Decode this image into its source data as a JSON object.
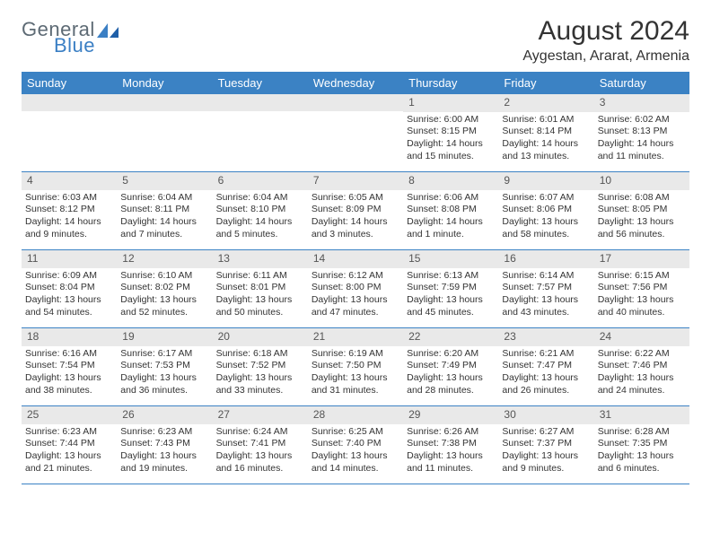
{
  "logo": {
    "word1": "General",
    "word2": "Blue",
    "color1": "#5d6a74",
    "color2": "#3b7fc4"
  },
  "title": "August 2024",
  "location": "Aygestan, Ararat, Armenia",
  "header_bg": "#3b82c4",
  "header_text_color": "#ffffff",
  "daynum_bg": "#e9e9e9",
  "weekdays": [
    "Sunday",
    "Monday",
    "Tuesday",
    "Wednesday",
    "Thursday",
    "Friday",
    "Saturday"
  ],
  "weeks": [
    [
      {
        "n": "",
        "lines": []
      },
      {
        "n": "",
        "lines": []
      },
      {
        "n": "",
        "lines": []
      },
      {
        "n": "",
        "lines": []
      },
      {
        "n": "1",
        "lines": [
          "Sunrise: 6:00 AM",
          "Sunset: 8:15 PM",
          "Daylight: 14 hours and 15 minutes."
        ]
      },
      {
        "n": "2",
        "lines": [
          "Sunrise: 6:01 AM",
          "Sunset: 8:14 PM",
          "Daylight: 14 hours and 13 minutes."
        ]
      },
      {
        "n": "3",
        "lines": [
          "Sunrise: 6:02 AM",
          "Sunset: 8:13 PM",
          "Daylight: 14 hours and 11 minutes."
        ]
      }
    ],
    [
      {
        "n": "4",
        "lines": [
          "Sunrise: 6:03 AM",
          "Sunset: 8:12 PM",
          "Daylight: 14 hours and 9 minutes."
        ]
      },
      {
        "n": "5",
        "lines": [
          "Sunrise: 6:04 AM",
          "Sunset: 8:11 PM",
          "Daylight: 14 hours and 7 minutes."
        ]
      },
      {
        "n": "6",
        "lines": [
          "Sunrise: 6:04 AM",
          "Sunset: 8:10 PM",
          "Daylight: 14 hours and 5 minutes."
        ]
      },
      {
        "n": "7",
        "lines": [
          "Sunrise: 6:05 AM",
          "Sunset: 8:09 PM",
          "Daylight: 14 hours and 3 minutes."
        ]
      },
      {
        "n": "8",
        "lines": [
          "Sunrise: 6:06 AM",
          "Sunset: 8:08 PM",
          "Daylight: 14 hours and 1 minute."
        ]
      },
      {
        "n": "9",
        "lines": [
          "Sunrise: 6:07 AM",
          "Sunset: 8:06 PM",
          "Daylight: 13 hours and 58 minutes."
        ]
      },
      {
        "n": "10",
        "lines": [
          "Sunrise: 6:08 AM",
          "Sunset: 8:05 PM",
          "Daylight: 13 hours and 56 minutes."
        ]
      }
    ],
    [
      {
        "n": "11",
        "lines": [
          "Sunrise: 6:09 AM",
          "Sunset: 8:04 PM",
          "Daylight: 13 hours and 54 minutes."
        ]
      },
      {
        "n": "12",
        "lines": [
          "Sunrise: 6:10 AM",
          "Sunset: 8:02 PM",
          "Daylight: 13 hours and 52 minutes."
        ]
      },
      {
        "n": "13",
        "lines": [
          "Sunrise: 6:11 AM",
          "Sunset: 8:01 PM",
          "Daylight: 13 hours and 50 minutes."
        ]
      },
      {
        "n": "14",
        "lines": [
          "Sunrise: 6:12 AM",
          "Sunset: 8:00 PM",
          "Daylight: 13 hours and 47 minutes."
        ]
      },
      {
        "n": "15",
        "lines": [
          "Sunrise: 6:13 AM",
          "Sunset: 7:59 PM",
          "Daylight: 13 hours and 45 minutes."
        ]
      },
      {
        "n": "16",
        "lines": [
          "Sunrise: 6:14 AM",
          "Sunset: 7:57 PM",
          "Daylight: 13 hours and 43 minutes."
        ]
      },
      {
        "n": "17",
        "lines": [
          "Sunrise: 6:15 AM",
          "Sunset: 7:56 PM",
          "Daylight: 13 hours and 40 minutes."
        ]
      }
    ],
    [
      {
        "n": "18",
        "lines": [
          "Sunrise: 6:16 AM",
          "Sunset: 7:54 PM",
          "Daylight: 13 hours and 38 minutes."
        ]
      },
      {
        "n": "19",
        "lines": [
          "Sunrise: 6:17 AM",
          "Sunset: 7:53 PM",
          "Daylight: 13 hours and 36 minutes."
        ]
      },
      {
        "n": "20",
        "lines": [
          "Sunrise: 6:18 AM",
          "Sunset: 7:52 PM",
          "Daylight: 13 hours and 33 minutes."
        ]
      },
      {
        "n": "21",
        "lines": [
          "Sunrise: 6:19 AM",
          "Sunset: 7:50 PM",
          "Daylight: 13 hours and 31 minutes."
        ]
      },
      {
        "n": "22",
        "lines": [
          "Sunrise: 6:20 AM",
          "Sunset: 7:49 PM",
          "Daylight: 13 hours and 28 minutes."
        ]
      },
      {
        "n": "23",
        "lines": [
          "Sunrise: 6:21 AM",
          "Sunset: 7:47 PM",
          "Daylight: 13 hours and 26 minutes."
        ]
      },
      {
        "n": "24",
        "lines": [
          "Sunrise: 6:22 AM",
          "Sunset: 7:46 PM",
          "Daylight: 13 hours and 24 minutes."
        ]
      }
    ],
    [
      {
        "n": "25",
        "lines": [
          "Sunrise: 6:23 AM",
          "Sunset: 7:44 PM",
          "Daylight: 13 hours and 21 minutes."
        ]
      },
      {
        "n": "26",
        "lines": [
          "Sunrise: 6:23 AM",
          "Sunset: 7:43 PM",
          "Daylight: 13 hours and 19 minutes."
        ]
      },
      {
        "n": "27",
        "lines": [
          "Sunrise: 6:24 AM",
          "Sunset: 7:41 PM",
          "Daylight: 13 hours and 16 minutes."
        ]
      },
      {
        "n": "28",
        "lines": [
          "Sunrise: 6:25 AM",
          "Sunset: 7:40 PM",
          "Daylight: 13 hours and 14 minutes."
        ]
      },
      {
        "n": "29",
        "lines": [
          "Sunrise: 6:26 AM",
          "Sunset: 7:38 PM",
          "Daylight: 13 hours and 11 minutes."
        ]
      },
      {
        "n": "30",
        "lines": [
          "Sunrise: 6:27 AM",
          "Sunset: 7:37 PM",
          "Daylight: 13 hours and 9 minutes."
        ]
      },
      {
        "n": "31",
        "lines": [
          "Sunrise: 6:28 AM",
          "Sunset: 7:35 PM",
          "Daylight: 13 hours and 6 minutes."
        ]
      }
    ]
  ]
}
